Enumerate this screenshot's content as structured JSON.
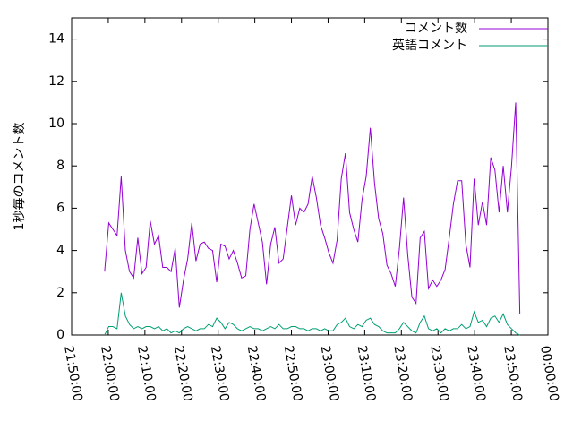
{
  "chart_data": {
    "type": "line",
    "y_label": "1秒毎のコメント数",
    "x": [
      79140,
      79208,
      79276,
      79344,
      79412,
      79480,
      79548,
      79616,
      79684,
      79752,
      79820,
      79888,
      79956,
      80024,
      80092,
      80160,
      80228,
      80296,
      80364,
      80432,
      80500,
      80568,
      80636,
      80704,
      80772,
      80840,
      80908,
      80976,
      81044,
      81112,
      81180,
      81248,
      81316,
      81384,
      81452,
      81520,
      81588,
      81656,
      81724,
      81792,
      81860,
      81928,
      81996,
      82064,
      82132,
      82200,
      82268,
      82336,
      82404,
      82472,
      82540,
      82608,
      82676,
      82744,
      82812,
      82880,
      82948,
      83016,
      83084,
      83152,
      83220,
      83288,
      83356,
      83424,
      83492,
      83560,
      83628,
      83696,
      83764,
      83832,
      83900,
      83968,
      84036,
      84104,
      84172,
      84240,
      84308,
      84376,
      84444,
      84512,
      84580,
      84648,
      84716,
      84784,
      84852,
      84920,
      84988,
      85056,
      85124,
      85192,
      85260,
      85328,
      85396,
      85464,
      85532,
      85600,
      85668,
      85736,
      85804,
      85872,
      85940
    ],
    "series": [
      {
        "name": "コメント数",
        "color": "#9400d3",
        "values": [
          3.0,
          5.3,
          5.0,
          4.7,
          7.5,
          4.0,
          3.0,
          2.7,
          4.6,
          2.9,
          3.2,
          5.4,
          4.3,
          4.7,
          3.2,
          3.2,
          3.0,
          4.1,
          1.3,
          2.6,
          3.6,
          5.3,
          3.5,
          4.3,
          4.4,
          4.1,
          4.0,
          2.5,
          4.3,
          4.2,
          3.6,
          4.0,
          3.4,
          2.7,
          2.8,
          5.0,
          6.2,
          5.3,
          4.4,
          2.4,
          4.3,
          5.1,
          3.4,
          3.6,
          5.1,
          6.6,
          5.2,
          6.0,
          5.8,
          6.2,
          7.5,
          6.5,
          5.2,
          4.6,
          3.9,
          3.4,
          4.5,
          7.4,
          8.6,
          5.8,
          5.0,
          4.4,
          6.4,
          7.5,
          9.8,
          7.2,
          5.5,
          4.8,
          3.3,
          2.9,
          2.3,
          4.1,
          6.5,
          3.8,
          1.8,
          1.5,
          4.6,
          4.9,
          2.2,
          2.6,
          2.3,
          2.6,
          3.1,
          4.6,
          6.2,
          7.3,
          7.3,
          4.3,
          3.2,
          7.4,
          5.2,
          6.3,
          5.2,
          8.4,
          7.8,
          5.8,
          8.0,
          5.8,
          8.0,
          11.0,
          1.0
        ]
      },
      {
        "name": "英語コメント",
        "color": "#009e73",
        "values": [
          0,
          0.4,
          0.4,
          0.3,
          2.0,
          0.9,
          0.5,
          0.3,
          0.4,
          0.3,
          0.4,
          0.4,
          0.3,
          0.4,
          0.2,
          0.3,
          0.1,
          0.2,
          0.1,
          0.3,
          0.4,
          0.3,
          0.2,
          0.3,
          0.3,
          0.5,
          0.4,
          0.8,
          0.6,
          0.3,
          0.6,
          0.5,
          0.3,
          0.2,
          0.3,
          0.4,
          0.3,
          0.3,
          0.2,
          0.3,
          0.4,
          0.3,
          0.5,
          0.3,
          0.3,
          0.4,
          0.4,
          0.3,
          0.3,
          0.2,
          0.3,
          0.3,
          0.2,
          0.3,
          0.2,
          0.2,
          0.5,
          0.6,
          0.8,
          0.4,
          0.3,
          0.5,
          0.4,
          0.7,
          0.8,
          0.5,
          0.4,
          0.2,
          0.1,
          0.1,
          0.1,
          0.3,
          0.6,
          0.4,
          0.2,
          0.1,
          0.6,
          0.9,
          0.3,
          0.2,
          0.3,
          0.1,
          0.3,
          0.2,
          0.3,
          0.3,
          0.5,
          0.3,
          0.4,
          1.1,
          0.6,
          0.7,
          0.4,
          0.8,
          0.9,
          0.6,
          1.0,
          0.5,
          0.3,
          0.1,
          0.0
        ]
      }
    ],
    "xlim": [
      78600,
      86400
    ],
    "xticks": [
      {
        "value": 78600,
        "label": "21:50:00"
      },
      {
        "value": 79200,
        "label": "22:00:00"
      },
      {
        "value": 79800,
        "label": "22:10:00"
      },
      {
        "value": 80400,
        "label": "22:20:00"
      },
      {
        "value": 81000,
        "label": "22:30:00"
      },
      {
        "value": 81600,
        "label": "22:40:00"
      },
      {
        "value": 82200,
        "label": "22:50:00"
      },
      {
        "value": 82800,
        "label": "23:00:00"
      },
      {
        "value": 83400,
        "label": "23:10:00"
      },
      {
        "value": 84000,
        "label": "23:20:00"
      },
      {
        "value": 84600,
        "label": "23:30:00"
      },
      {
        "value": 85200,
        "label": "23:40:00"
      },
      {
        "value": 85800,
        "label": "23:50:00"
      },
      {
        "value": 86400,
        "label": "00:00:00"
      }
    ],
    "ylim": [
      0,
      15
    ],
    "yticks": [
      0,
      2,
      4,
      6,
      8,
      10,
      12,
      14
    ],
    "legend": "upper right"
  }
}
